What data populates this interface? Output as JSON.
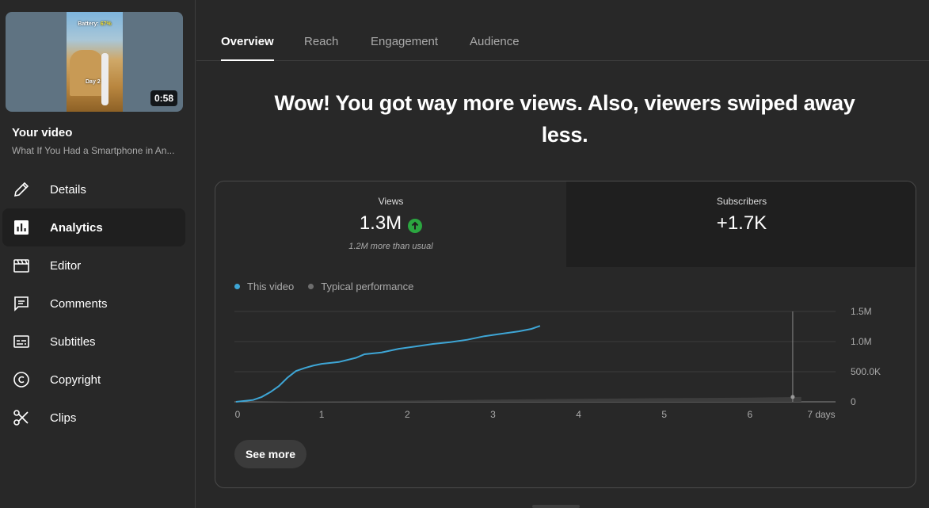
{
  "sidebar": {
    "thumbnail": {
      "battery_label": "Battery:",
      "battery_pct": "67%",
      "day_label": "Day 2",
      "duration": "0:58"
    },
    "your_video_label": "Your video",
    "video_title": "What If You Had a Smartphone in An...",
    "items": [
      {
        "label": "Details",
        "icon": "pencil-icon"
      },
      {
        "label": "Analytics",
        "icon": "analytics-icon",
        "active": true
      },
      {
        "label": "Editor",
        "icon": "clapperboard-icon"
      },
      {
        "label": "Comments",
        "icon": "comment-icon"
      },
      {
        "label": "Subtitles",
        "icon": "subtitles-icon"
      },
      {
        "label": "Copyright",
        "icon": "copyright-icon"
      },
      {
        "label": "Clips",
        "icon": "scissors-icon"
      }
    ]
  },
  "tabs": [
    {
      "label": "Overview",
      "active": true
    },
    {
      "label": "Reach"
    },
    {
      "label": "Engagement"
    },
    {
      "label": "Audience"
    }
  ],
  "headline": "Wow! You got way more views. Also, viewers swiped away less.",
  "metrics": {
    "views": {
      "label": "Views",
      "value": "1.3M",
      "subtext": "1.2M more than usual",
      "trend": "up"
    },
    "subscribers": {
      "label": "Subscribers",
      "value": "+1.7K"
    }
  },
  "legend": {
    "this_video": "This video",
    "typical": "Typical performance"
  },
  "colors": {
    "this_video": "#3ea6d6",
    "typical": "#6e6e6e",
    "trend_up": "#2ba640"
  },
  "chart_data": {
    "type": "line",
    "xlabel": "days",
    "x_ticks": [
      "0",
      "1",
      "2",
      "3",
      "4",
      "5",
      "6",
      "7 days"
    ],
    "y_ticks": [
      "0",
      "500.0K",
      "1.0M",
      "1.5M"
    ],
    "xlim": [
      0,
      7
    ],
    "ylim": [
      0,
      1500000
    ],
    "series": [
      {
        "name": "This video",
        "points": [
          [
            0,
            0
          ],
          [
            0.2,
            30000
          ],
          [
            0.3,
            80000
          ],
          [
            0.4,
            160000
          ],
          [
            0.5,
            260000
          ],
          [
            0.6,
            400000
          ],
          [
            0.7,
            510000
          ],
          [
            0.8,
            560000
          ],
          [
            0.9,
            600000
          ],
          [
            1.0,
            630000
          ],
          [
            1.2,
            660000
          ],
          [
            1.4,
            730000
          ],
          [
            1.5,
            790000
          ],
          [
            1.7,
            820000
          ],
          [
            1.9,
            880000
          ],
          [
            2.1,
            920000
          ],
          [
            2.3,
            960000
          ],
          [
            2.5,
            990000
          ],
          [
            2.7,
            1030000
          ],
          [
            2.9,
            1090000
          ],
          [
            3.1,
            1130000
          ],
          [
            3.3,
            1170000
          ],
          [
            3.45,
            1210000
          ],
          [
            3.55,
            1260000
          ]
        ]
      },
      {
        "name": "Typical performance",
        "points": [
          [
            0,
            0
          ],
          [
            1,
            10000
          ],
          [
            2,
            20000
          ],
          [
            3,
            35000
          ],
          [
            4,
            50000
          ],
          [
            5,
            60000
          ],
          [
            6,
            70000
          ],
          [
            6.6,
            80000
          ]
        ]
      }
    ],
    "marker_x": 6.5
  },
  "see_more_label": "See more"
}
